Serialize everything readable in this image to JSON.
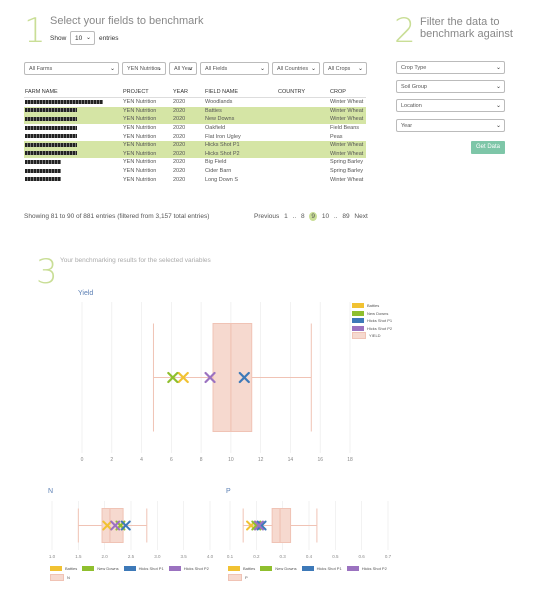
{
  "section1": {
    "number": "1",
    "title": "Select your fields to benchmark",
    "show_label": "Show",
    "entries_value": "10",
    "entries_label": "entries"
  },
  "section2": {
    "number": "2",
    "title_line1": "Filter the data to",
    "title_line2": "benchmark against"
  },
  "section3": {
    "number": "3",
    "title": "Your benchmarking results for the selected variables"
  },
  "table_filters": [
    "All Farms",
    "YEN Nutrition",
    "All Year",
    "All Fields",
    "All Countries",
    "All Crops"
  ],
  "table": {
    "columns": [
      "FARM NAME",
      "PROJECT",
      "YEAR",
      "FIELD NAME",
      "COUNTRY",
      "CROP"
    ],
    "rows": [
      {
        "project": "YEN Nutrition",
        "year": "2020",
        "field": "Woodlands",
        "country": "",
        "crop": "Winter Wheat",
        "highlight": false
      },
      {
        "project": "YEN Nutrition",
        "year": "2020",
        "field": "Batties",
        "country": "",
        "crop": "Winter Wheat",
        "highlight": true
      },
      {
        "project": "YEN Nutrition",
        "year": "2020",
        "field": "New Downs",
        "country": "",
        "crop": "Winter Wheat",
        "highlight": true
      },
      {
        "project": "YEN Nutrition",
        "year": "2020",
        "field": "Oakfield",
        "country": "",
        "crop": "Field Beans",
        "highlight": false
      },
      {
        "project": "YEN Nutrition",
        "year": "2020",
        "field": "Flat Iron Ugley",
        "country": "",
        "crop": "Peas",
        "highlight": false
      },
      {
        "project": "YEN Nutrition",
        "year": "2020",
        "field": "Hicks Shot P1",
        "country": "",
        "crop": "Winter Wheat",
        "highlight": true
      },
      {
        "project": "YEN Nutrition",
        "year": "2020",
        "field": "Hicks Shot P2",
        "country": "",
        "crop": "Winter Wheat",
        "highlight": true
      },
      {
        "project": "YEN Nutrition",
        "year": "2020",
        "field": "Big Field",
        "country": "",
        "crop": "Spring Barley",
        "highlight": false
      },
      {
        "project": "YEN Nutrition",
        "year": "2020",
        "field": "Cider Barn",
        "country": "",
        "crop": "Spring Barley",
        "highlight": false
      },
      {
        "project": "YEN Nutrition",
        "year": "2020",
        "field": "Long Down S",
        "country": "",
        "crop": "Winter Wheat",
        "highlight": false
      }
    ]
  },
  "table_info": "Showing 81 to 90 of 881 entries (filtered from 3,157 total entries)",
  "pagination": {
    "previous": "Previous",
    "p1": "1",
    "ell1": "..",
    "p8": "8",
    "p9": "9",
    "p10": "10",
    "ell2": "..",
    "p89": "89",
    "next": "Next"
  },
  "filters": [
    {
      "label": "Crop Type"
    },
    {
      "label": "Soil Group"
    },
    {
      "label": "Location"
    },
    {
      "label": "Year"
    }
  ],
  "get_data_button": "Get Data",
  "icons": {
    "dropdown": "chevron-down-icon",
    "marker": "x-marker-icon"
  },
  "colors": {
    "accent_green": "#c9de96",
    "highlight_row": "#d5e5a5",
    "button": "#7ec6a8",
    "box": "#f6d9cf",
    "batties": "#f1c232",
    "new_downs": "#8fbf2e",
    "hicks_p1": "#3d79b8",
    "hicks_p2": "#9b72c0"
  },
  "chart_data": [
    {
      "type": "box",
      "title": "Yield",
      "xlim": [
        0,
        18
      ],
      "xticks": [
        "0",
        "2",
        "4",
        "6",
        "8",
        "10",
        "12",
        "14",
        "16",
        "18"
      ],
      "box": {
        "name": "YIELD",
        "min": 4.8,
        "q1": 8.8,
        "median": 10.0,
        "q3": 11.4,
        "max": 15.4
      },
      "points": [
        {
          "name": "Batties",
          "value": 6.8
        },
        {
          "name": "New Downs",
          "value": 6.1
        },
        {
          "name": "Hicks Shot P1",
          "value": 10.9
        },
        {
          "name": "Hicks Shot P2",
          "value": 8.6
        }
      ],
      "legend": [
        "Batties",
        "New Downs",
        "Hicks Shot P1",
        "Hicks Shot P2",
        "YIELD"
      ]
    },
    {
      "type": "box",
      "title": "N",
      "xlim": [
        1.0,
        4.0
      ],
      "xticks": [
        "1.0",
        "1.5",
        "2.0",
        "2.5",
        "3.0",
        "3.5",
        "4.0"
      ],
      "box": {
        "name": "N",
        "min": 1.5,
        "q1": 1.95,
        "median": 2.1,
        "q3": 2.35,
        "max": 2.8
      },
      "points": [
        {
          "name": "Batties",
          "value": 2.05
        },
        {
          "name": "New Downs",
          "value": 2.3
        },
        {
          "name": "Hicks Shot P1",
          "value": 2.4
        },
        {
          "name": "Hicks Shot P2",
          "value": 2.2
        }
      ],
      "legend": [
        "Batties",
        "New Downs",
        "Hicks Shot P1",
        "Hicks Shot P2",
        "N"
      ]
    },
    {
      "type": "box",
      "title": "P",
      "xlim": [
        0.1,
        0.7
      ],
      "xticks": [
        "0.1",
        "0.2",
        "0.3",
        "0.4",
        "0.5",
        "0.6",
        "0.7"
      ],
      "box": {
        "name": "P",
        "min": 0.15,
        "q1": 0.26,
        "median": 0.29,
        "q3": 0.33,
        "max": 0.43
      },
      "points": [
        {
          "name": "Batties",
          "value": 0.18
        },
        {
          "name": "New Downs",
          "value": 0.2
        },
        {
          "name": "Hicks Shot P1",
          "value": 0.22
        },
        {
          "name": "Hicks Shot P2",
          "value": 0.21
        }
      ],
      "legend": [
        "Batties",
        "New Downs",
        "Hicks Shot P1",
        "Hicks Shot P2",
        "P"
      ]
    }
  ]
}
